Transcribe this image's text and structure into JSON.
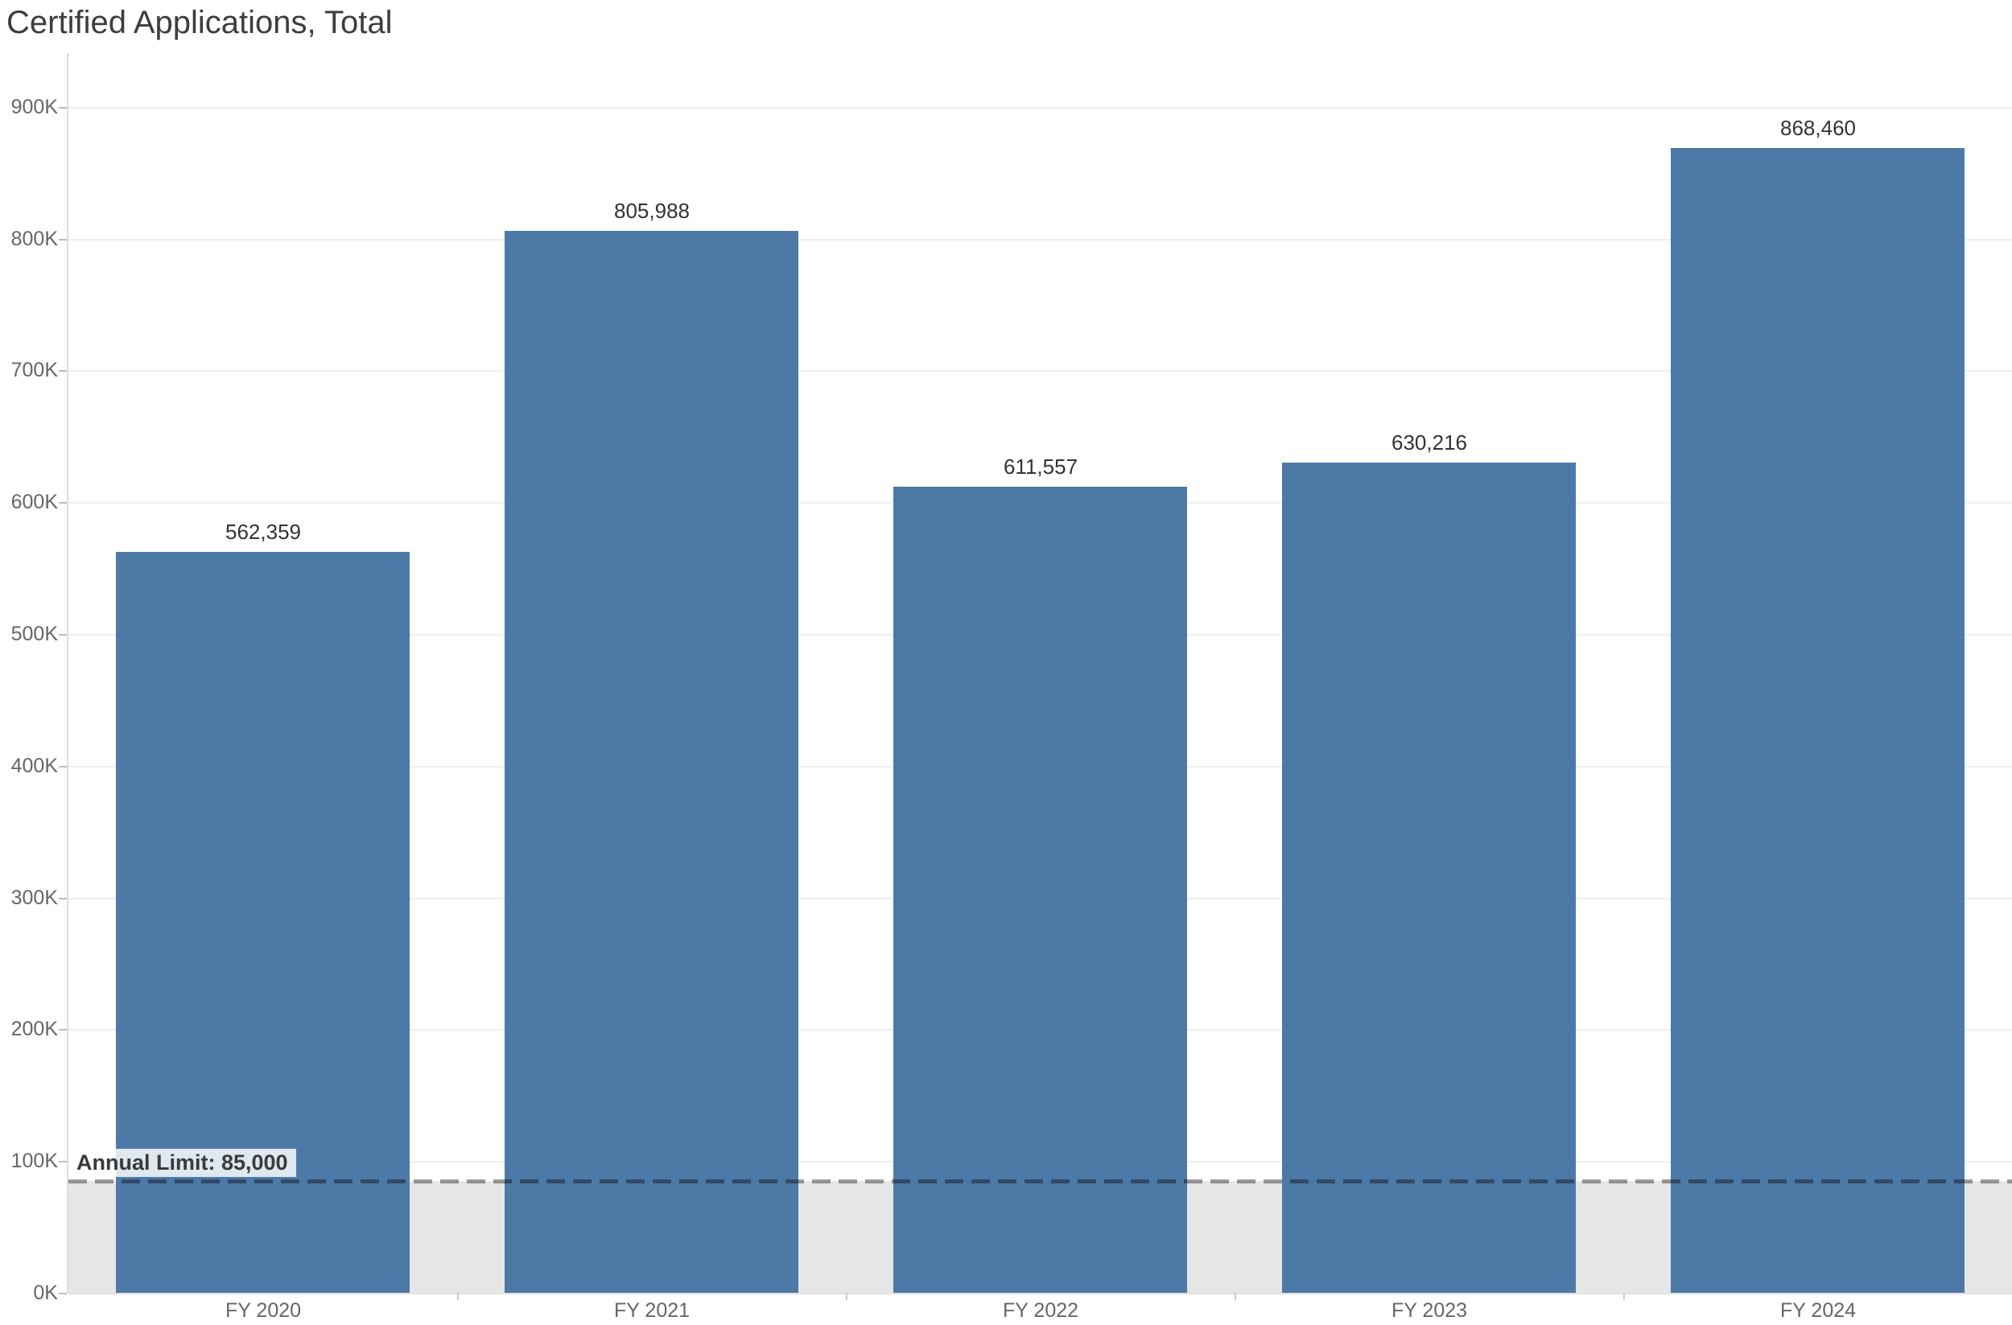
{
  "title": "Certified Applications, Total",
  "colors": {
    "bar": "#4d79a7",
    "reference_band": "#e6e6e6",
    "gridline": "#efefef",
    "axis_line": "#dcdcdc",
    "tick_label": "#666666",
    "value_label": "#333333",
    "title_text": "#3d3d3d",
    "annotation_text": "#3a3a3a",
    "annotation_background": "rgba(255,255,255,0.82)"
  },
  "chart_data": {
    "type": "bar",
    "title": "Certified Applications, Total",
    "categories": [
      "FY 2020",
      "FY 2021",
      "FY 2022",
      "FY 2023",
      "FY 2024"
    ],
    "values": [
      562359,
      805988,
      611557,
      630216,
      868460
    ],
    "value_labels": [
      "562,359",
      "805,988",
      "611,557",
      "630,216",
      "868,460"
    ],
    "xlabel": "",
    "ylabel": "",
    "ylim": [
      0,
      940000
    ],
    "ytick_interval": 100000,
    "ytick_values": [
      0,
      100000,
      200000,
      300000,
      400000,
      500000,
      600000,
      700000,
      800000,
      900000
    ],
    "ytick_labels": [
      "0K",
      "100K",
      "200K",
      "300K",
      "400K",
      "500K",
      "600K",
      "700K",
      "800K",
      "900K"
    ],
    "grid": "horizontal",
    "legend": "none",
    "reference_line": {
      "value": 85000,
      "label": "Annual Limit: 85,000",
      "style": "dashed",
      "band_below": {
        "from": 0,
        "to": 85000
      }
    }
  }
}
